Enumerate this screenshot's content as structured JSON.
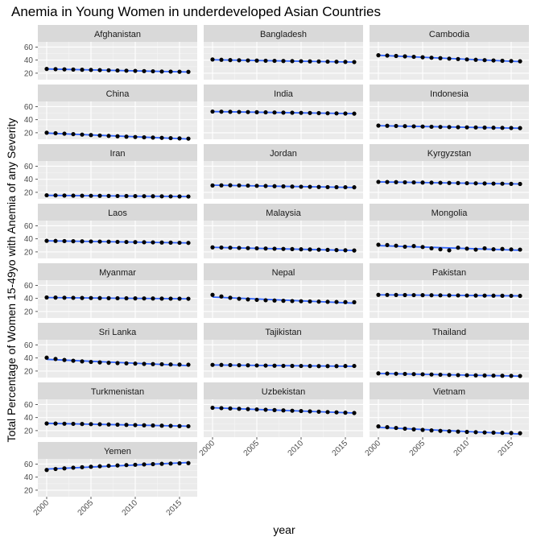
{
  "chart_data": {
    "type": "scatter",
    "title": "Anemia in Young Women in underdeveloped Asian Countries",
    "xlabel": "year",
    "ylabel": "Total Percentage of Women 15-49yo with Anemia of any Severity",
    "xlim": [
      1999,
      2017
    ],
    "ylim": [
      10,
      68
    ],
    "x_ticks": [
      2000,
      2005,
      2010,
      2015
    ],
    "y_ticks": [
      20,
      40,
      60
    ],
    "x_tick_labels": [
      "2000",
      "2005",
      "2010",
      "2015"
    ],
    "y_tick_labels": [
      "20",
      "40",
      "60"
    ],
    "x": [
      2000,
      2001,
      2002,
      2003,
      2004,
      2005,
      2006,
      2007,
      2008,
      2009,
      2010,
      2011,
      2012,
      2013,
      2014,
      2015,
      2016
    ],
    "trend": "linear fit (blue line)",
    "colors": {
      "points": "#000000",
      "trend": "#3366ff",
      "panel_bg": "#ebebeb",
      "strip_bg": "#d9d9d9",
      "grid": "#ffffff"
    },
    "series": [
      {
        "name": "Afghanistan",
        "values": [
          26.5,
          26.2,
          25.9,
          25.6,
          25.3,
          25.0,
          24.7,
          24.4,
          24.1,
          23.8,
          23.5,
          23.2,
          22.9,
          22.6,
          22.4,
          22.2,
          22.0
        ]
      },
      {
        "name": "Bangladesh",
        "values": [
          41.0,
          40.5,
          40.1,
          39.8,
          39.5,
          39.3,
          39.1,
          38.9,
          38.7,
          38.5,
          38.3,
          38.1,
          37.9,
          37.7,
          37.5,
          37.3,
          37.1
        ]
      },
      {
        "name": "Cambodia",
        "values": [
          47.5,
          47.0,
          46.4,
          45.8,
          45.1,
          44.4,
          43.7,
          43.0,
          42.3,
          41.7,
          41.1,
          40.5,
          40.0,
          39.5,
          39.0,
          38.6,
          38.2
        ]
      },
      {
        "name": "China",
        "values": [
          20.0,
          19.3,
          18.6,
          17.9,
          17.2,
          16.5,
          15.8,
          15.2,
          14.6,
          14.0,
          13.5,
          13.0,
          12.6,
          12.2,
          11.8,
          11.4,
          11.0
        ]
      },
      {
        "name": "India",
        "values": [
          52.5,
          52.3,
          52.1,
          51.9,
          51.7,
          51.5,
          51.3,
          51.1,
          50.9,
          50.7,
          50.5,
          50.3,
          50.1,
          49.9,
          49.7,
          49.5,
          49.3
        ]
      },
      {
        "name": "Indonesia",
        "values": [
          31.0,
          30.7,
          30.4,
          30.1,
          29.8,
          29.5,
          29.2,
          28.9,
          28.7,
          28.5,
          28.3,
          28.1,
          27.9,
          27.7,
          27.5,
          27.3,
          27.1
        ]
      },
      {
        "name": "Iran",
        "values": [
          15.5,
          15.3,
          15.1,
          14.9,
          14.8,
          14.7,
          14.6,
          14.5,
          14.4,
          14.3,
          14.2,
          14.1,
          14.0,
          13.9,
          13.8,
          13.7,
          13.6
        ]
      },
      {
        "name": "Jordan",
        "values": [
          30.5,
          30.7,
          30.8,
          30.6,
          30.3,
          30.0,
          29.7,
          29.4,
          29.1,
          28.8,
          28.6,
          28.4,
          28.2,
          28.0,
          27.9,
          27.8,
          27.7
        ]
      },
      {
        "name": "Kyrgyzstan",
        "values": [
          36.0,
          35.8,
          35.6,
          35.4,
          35.2,
          35.0,
          34.8,
          34.6,
          34.4,
          34.2,
          34.0,
          33.8,
          33.6,
          33.4,
          33.2,
          33.0,
          32.8
        ]
      },
      {
        "name": "Laos",
        "values": [
          37.0,
          36.8,
          36.6,
          36.4,
          36.2,
          36.0,
          35.8,
          35.6,
          35.4,
          35.2,
          35.0,
          34.8,
          34.6,
          34.4,
          34.2,
          34.0,
          33.8
        ]
      },
      {
        "name": "Malaysia",
        "values": [
          27.0,
          26.7,
          26.4,
          26.1,
          25.8,
          25.5,
          25.2,
          24.9,
          24.6,
          24.3,
          24.0,
          23.7,
          23.4,
          23.1,
          22.8,
          22.5,
          22.2
        ]
      },
      {
        "name": "Mongolia",
        "values": [
          31.0,
          30.5,
          29.5,
          28.0,
          29.0,
          27.5,
          25.5,
          24.0,
          22.5,
          26.5,
          25.0,
          23.5,
          25.5,
          24.0,
          24.5,
          23.8,
          23.5
        ]
      },
      {
        "name": "Myanmar",
        "values": [
          41.5,
          41.3,
          41.1,
          40.9,
          40.7,
          40.6,
          40.5,
          40.4,
          40.3,
          40.2,
          40.1,
          40.0,
          39.9,
          39.8,
          39.7,
          39.6,
          39.5
        ]
      },
      {
        "name": "Nepal",
        "values": [
          45.5,
          43.0,
          41.0,
          39.5,
          38.5,
          37.8,
          37.2,
          36.8,
          36.4,
          36.0,
          35.7,
          35.4,
          35.1,
          34.8,
          34.6,
          34.4,
          34.2
        ]
      },
      {
        "name": "Pakistan",
        "values": [
          45.5,
          45.4,
          45.3,
          45.2,
          45.1,
          45.0,
          44.9,
          44.8,
          44.7,
          44.6,
          44.5,
          44.4,
          44.3,
          44.2,
          44.1,
          44.0,
          43.9
        ]
      },
      {
        "name": "Sri Lanka",
        "values": [
          40.5,
          38.5,
          37.0,
          35.8,
          34.8,
          34.0,
          33.3,
          32.7,
          32.2,
          31.8,
          31.4,
          31.0,
          30.7,
          30.4,
          30.1,
          29.9,
          29.7
        ]
      },
      {
        "name": "Tajikistan",
        "values": [
          29.5,
          29.4,
          29.2,
          29.0,
          28.8,
          28.6,
          28.4,
          28.2,
          28.0,
          27.9,
          27.8,
          27.7,
          27.6,
          27.6,
          27.6,
          27.7,
          27.8
        ]
      },
      {
        "name": "Thailand",
        "values": [
          16.5,
          16.2,
          15.9,
          15.6,
          15.3,
          15.0,
          14.7,
          14.4,
          14.1,
          13.8,
          13.6,
          13.4,
          13.2,
          13.0,
          12.8,
          12.6,
          12.4
        ]
      },
      {
        "name": "Turkmenistan",
        "values": [
          31.0,
          30.8,
          30.6,
          30.4,
          30.2,
          30.0,
          29.7,
          29.4,
          29.1,
          28.8,
          28.5,
          28.2,
          27.9,
          27.6,
          27.3,
          27.0,
          26.7
        ]
      },
      {
        "name": "Uzbekistan",
        "values": [
          55.0,
          54.5,
          54.0,
          53.5,
          53.0,
          52.5,
          52.0,
          51.5,
          51.0,
          50.5,
          50.0,
          49.5,
          49.0,
          48.5,
          48.0,
          47.5,
          47.0
        ]
      },
      {
        "name": "Vietnam",
        "values": [
          26.5,
          25.3,
          24.1,
          23.0,
          22.0,
          21.1,
          20.3,
          19.6,
          19.0,
          18.5,
          18.0,
          17.6,
          17.2,
          16.9,
          16.6,
          16.3,
          16.0
        ]
      },
      {
        "name": "Yemen",
        "values": [
          51.0,
          52.5,
          53.5,
          54.5,
          55.3,
          56.0,
          56.7,
          57.4,
          58.0,
          58.5,
          59.0,
          59.5,
          60.0,
          60.4,
          60.8,
          61.2,
          61.5
        ]
      }
    ]
  }
}
